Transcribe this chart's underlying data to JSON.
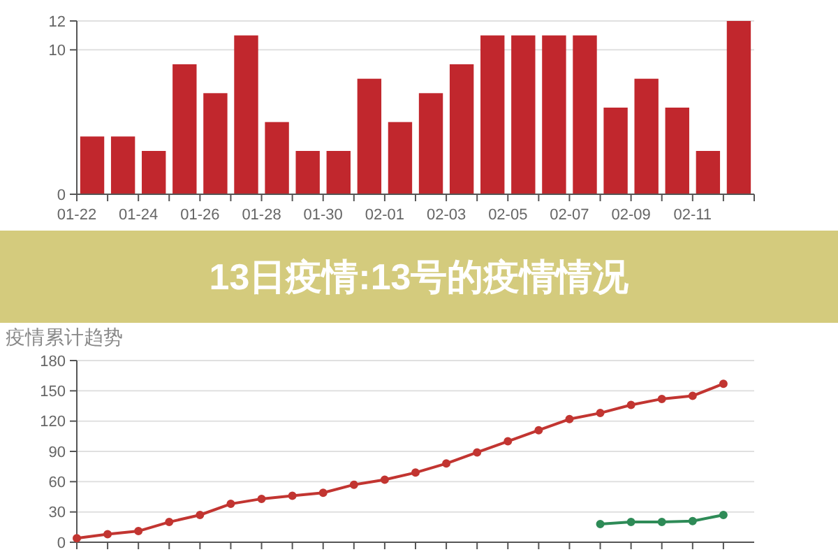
{
  "chart_data": [
    {
      "type": "bar",
      "categories": [
        "01-22",
        null,
        "01-24",
        null,
        "01-26",
        null,
        "01-28",
        null,
        "01-30",
        null,
        "02-01",
        null,
        "02-03",
        null,
        "02-05",
        null,
        "02-07",
        null,
        "02-09",
        null,
        "02-11",
        null
      ],
      "values": [
        4,
        4,
        3,
        9,
        7,
        11,
        5,
        3,
        3,
        8,
        5,
        7,
        9,
        11,
        11,
        11,
        11,
        6,
        8,
        6,
        3,
        12
      ],
      "color": "#c1272d",
      "ylim": [
        0,
        12
      ],
      "yticks": [
        0,
        10,
        12
      ],
      "grid": "y"
    },
    {
      "type": "other",
      "title": "13日疫情:13号的疫情情况"
    },
    {
      "type": "line",
      "title": "疫情累计趋势",
      "categories": [
        null,
        null,
        null,
        null,
        null,
        null,
        null,
        null,
        null,
        null,
        null,
        null,
        null,
        null,
        null,
        null,
        null,
        null,
        null,
        null,
        null,
        null
      ],
      "series": [
        {
          "color": "#c23531",
          "values": [
            4,
            8,
            11,
            20,
            27,
            38,
            43,
            46,
            49,
            57,
            62,
            69,
            78,
            89,
            100,
            111,
            122,
            128,
            136,
            142,
            145,
            157
          ]
        },
        {
          "color": "#2e8b57",
          "values": [
            null,
            null,
            null,
            null,
            null,
            null,
            null,
            null,
            null,
            null,
            null,
            null,
            null,
            null,
            null,
            null,
            null,
            18,
            20,
            20,
            21,
            27
          ]
        }
      ],
      "ylim": [
        0,
        180
      ],
      "yticks": [
        0,
        30,
        60,
        90,
        120,
        150,
        180
      ],
      "grid": "y",
      "marker": "circle",
      "tick_labels": "y"
    }
  ]
}
